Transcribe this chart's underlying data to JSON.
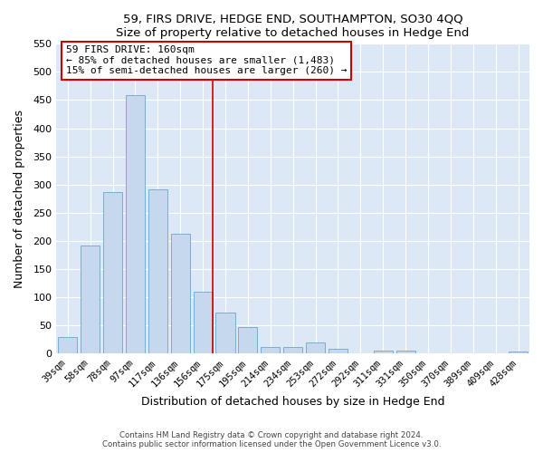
{
  "title1": "59, FIRS DRIVE, HEDGE END, SOUTHAMPTON, SO30 4QQ",
  "title2": "Size of property relative to detached houses in Hedge End",
  "xlabel": "Distribution of detached houses by size in Hedge End",
  "ylabel": "Number of detached properties",
  "bar_labels": [
    "39sqm",
    "58sqm",
    "78sqm",
    "97sqm",
    "117sqm",
    "136sqm",
    "156sqm",
    "175sqm",
    "195sqm",
    "214sqm",
    "234sqm",
    "253sqm",
    "272sqm",
    "292sqm",
    "311sqm",
    "331sqm",
    "350sqm",
    "370sqm",
    "389sqm",
    "409sqm",
    "428sqm"
  ],
  "bar_values": [
    30,
    192,
    287,
    459,
    292,
    213,
    110,
    73,
    47,
    12,
    12,
    20,
    8,
    0,
    5,
    5,
    0,
    0,
    0,
    0,
    4
  ],
  "bar_color": "#c5d8ee",
  "bar_edge_color": "#7aadd4",
  "vline_color": "#cc0000",
  "annotation_title": "59 FIRS DRIVE: 160sqm",
  "annotation_line1": "← 85% of detached houses are smaller (1,483)",
  "annotation_line2": "15% of semi-detached houses are larger (260) →",
  "annotation_box_color": "#ffffff",
  "annotation_box_edge": "#cc0000",
  "ylim": [
    0,
    550
  ],
  "yticks": [
    0,
    50,
    100,
    150,
    200,
    250,
    300,
    350,
    400,
    450,
    500,
    550
  ],
  "footnote1": "Contains HM Land Registry data © Crown copyright and database right 2024.",
  "footnote2": "Contains public sector information licensed under the Open Government Licence v3.0."
}
